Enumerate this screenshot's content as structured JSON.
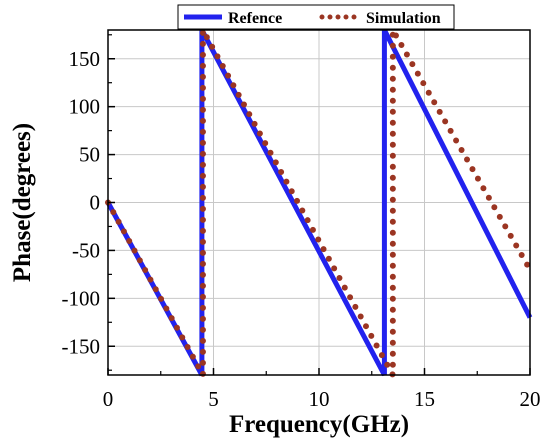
{
  "chart_data": {
    "type": "line",
    "xlabel": "Frequency(GHz)",
    "ylabel": "Phase(degrees)",
    "xlim": [
      0,
      20
    ],
    "ylim": [
      -180,
      180
    ],
    "x_ticks": [
      0,
      5,
      10,
      15,
      20
    ],
    "x_tick_labels": [
      "0",
      "5",
      "10",
      "15",
      "20"
    ],
    "y_ticks": [
      -150,
      -100,
      -50,
      0,
      50,
      100,
      150
    ],
    "y_tick_labels": [
      "-150",
      "-100",
      "-50",
      "0",
      "50",
      "100",
      "150"
    ],
    "grid": true,
    "legend_position": "top-right",
    "series": [
      {
        "name": "Refence",
        "style": "solid",
        "color": "#2222ee",
        "points": [
          [
            0,
            0
          ],
          [
            4.45,
            -180
          ],
          [
            4.45,
            180
          ],
          [
            13.1,
            -180
          ],
          [
            13.1,
            180
          ],
          [
            20,
            -120
          ]
        ]
      },
      {
        "name": "Simulation",
        "style": "dotted",
        "color": "#9b3522",
        "points": [
          [
            0,
            0
          ],
          [
            4.5,
            -180
          ],
          [
            4.5,
            180
          ],
          [
            13.5,
            -180
          ],
          [
            13.5,
            180
          ],
          [
            20,
            -70
          ]
        ]
      }
    ]
  }
}
